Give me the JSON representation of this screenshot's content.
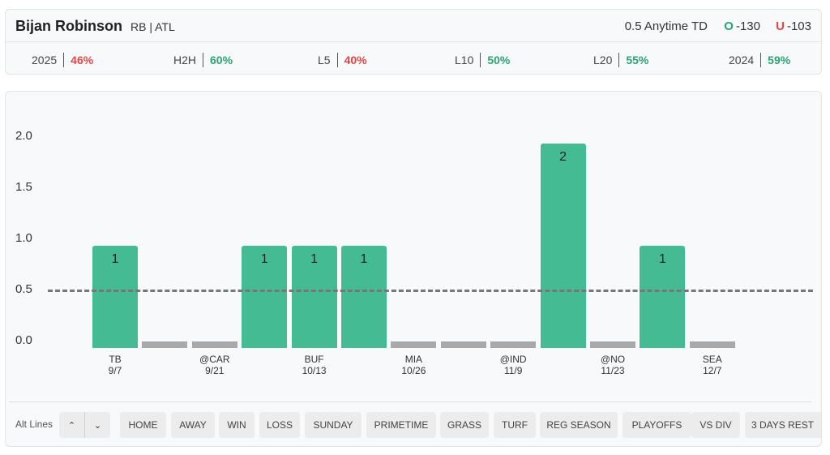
{
  "header": {
    "player_name": "Bijan Robinson",
    "player_meta": "RB | ATL",
    "prop_line": "0.5 Anytime TD",
    "over": {
      "tag": "O",
      "odds": "-130"
    },
    "under": {
      "tag": "U",
      "odds": "-103"
    }
  },
  "stats": [
    {
      "label": "2025",
      "value": "46%",
      "color": "red"
    },
    {
      "label": "H2H",
      "value": "60%",
      "color": "green"
    },
    {
      "label": "L5",
      "value": "40%",
      "color": "red"
    },
    {
      "label": "L10",
      "value": "50%",
      "color": "green"
    },
    {
      "label": "L20",
      "value": "55%",
      "color": "green"
    },
    {
      "label": "2024",
      "value": "59%",
      "color": "green"
    }
  ],
  "chart_data": {
    "type": "bar",
    "title": "",
    "xlabel": "",
    "ylabel": "",
    "ylim": [
      0,
      2
    ],
    "yticks": [
      "0.0",
      "0.5",
      "1.0",
      "1.5",
      "2.0"
    ],
    "threshold": 0.5,
    "values": [
      1,
      0,
      0,
      1,
      1,
      1,
      0,
      0,
      0,
      2,
      0,
      1,
      0
    ],
    "bar_labels": [
      "1",
      "",
      "",
      "1",
      "1",
      "1",
      "",
      "",
      "",
      "2",
      "",
      "1",
      ""
    ],
    "x_labels": [
      {
        "opp": "TB",
        "date": "9/7"
      },
      {
        "opp": "@CAR",
        "date": "9/21"
      },
      {
        "opp": "BUF",
        "date": "10/13"
      },
      {
        "opp": "MIA",
        "date": "10/26"
      },
      {
        "opp": "@IND",
        "date": "11/9"
      },
      {
        "opp": "@NO",
        "date": "11/23"
      },
      {
        "opp": "SEA",
        "date": "12/7"
      }
    ],
    "colors": {
      "bar": "#45bb93",
      "zero": "#a9a9a9",
      "threshold": "#777777"
    }
  },
  "filters": {
    "alt_lines_label": "Alt Lines",
    "up_icon": "chevron-up-icon",
    "down_icon": "chevron-down-icon",
    "up_glyph": "⌃",
    "down_glyph": "⌄",
    "pills": [
      "HOME",
      "AWAY",
      "WIN",
      "LOSS",
      "SUNDAY",
      "PRIMETIME",
      "GRASS",
      "TURF",
      "REG SEASON",
      "PLAYOFFS",
      "VS DIV",
      "3 DAYS REST"
    ]
  }
}
